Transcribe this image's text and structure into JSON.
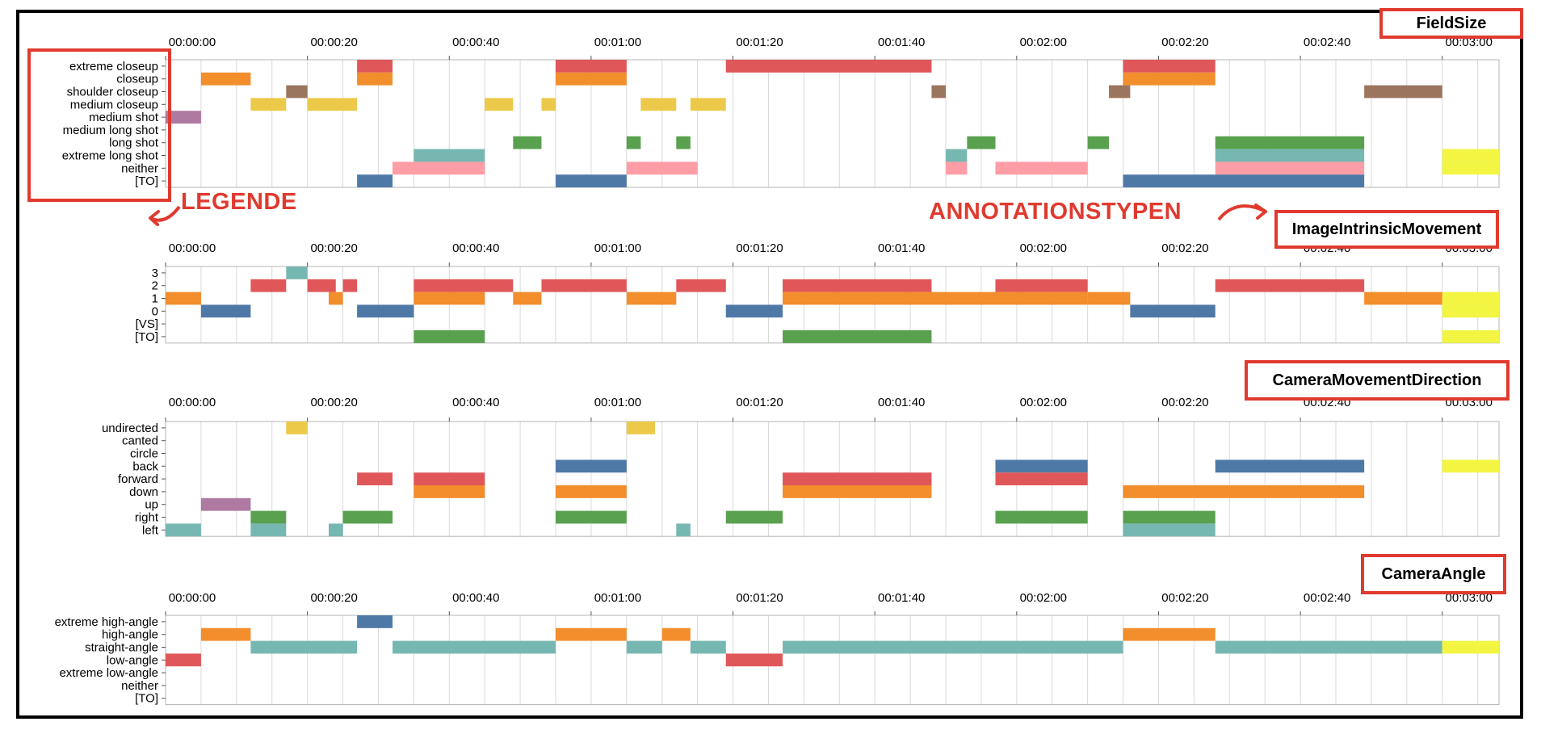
{
  "colors": {
    "red": "#e05759",
    "orange": "#f28e2c",
    "brown": "#9c755f",
    "yellow": "#edc949",
    "purple": "#af7aa1",
    "green": "#59a14f",
    "teal": "#76b7b2",
    "pink": "#ff9da7",
    "blue": "#4e79a7",
    "lime": "#f2f542",
    "highlight": "#e03a2f"
  },
  "annotations": {
    "legend_label": "LEGENDE",
    "types_label": "ANNOTATIONSTYPEN"
  },
  "chart_data": [
    {
      "type": "timeline",
      "title": "FieldSize",
      "time_ticks": [
        "00:00:00",
        "00:00:20",
        "00:00:40",
        "00:01:00",
        "00:01:20",
        "00:01:40",
        "00:02:00",
        "00:02:20",
        "00:02:40",
        "00:03:00"
      ],
      "x_range_seconds": [
        0,
        188
      ],
      "categories": [
        "extreme closeup",
        "closeup",
        "shoulder closeup",
        "medium closeup",
        "medium shot",
        "medium long shot",
        "long shot",
        "extreme long shot",
        "neither",
        "[TO]"
      ],
      "segments": [
        {
          "category": "extreme closeup",
          "start": 27,
          "end": 32,
          "color": "red"
        },
        {
          "category": "extreme closeup",
          "start": 55,
          "end": 65,
          "color": "red"
        },
        {
          "category": "extreme closeup",
          "start": 79,
          "end": 108,
          "color": "red"
        },
        {
          "category": "extreme closeup",
          "start": 135,
          "end": 148,
          "color": "red"
        },
        {
          "category": "closeup",
          "start": 5,
          "end": 12,
          "color": "orange"
        },
        {
          "category": "closeup",
          "start": 27,
          "end": 32,
          "color": "orange"
        },
        {
          "category": "closeup",
          "start": 55,
          "end": 65,
          "color": "orange"
        },
        {
          "category": "closeup",
          "start": 135,
          "end": 148,
          "color": "orange"
        },
        {
          "category": "shoulder closeup",
          "start": 17,
          "end": 20,
          "color": "brown"
        },
        {
          "category": "shoulder closeup",
          "start": 108,
          "end": 110,
          "color": "brown"
        },
        {
          "category": "shoulder closeup",
          "start": 133,
          "end": 136,
          "color": "brown"
        },
        {
          "category": "shoulder closeup",
          "start": 169,
          "end": 180,
          "color": "brown"
        },
        {
          "category": "medium closeup",
          "start": 12,
          "end": 17,
          "color": "yellow"
        },
        {
          "category": "medium closeup",
          "start": 20,
          "end": 27,
          "color": "yellow"
        },
        {
          "category": "medium closeup",
          "start": 45,
          "end": 49,
          "color": "yellow"
        },
        {
          "category": "medium closeup",
          "start": 53,
          "end": 55,
          "color": "yellow"
        },
        {
          "category": "medium closeup",
          "start": 67,
          "end": 72,
          "color": "yellow"
        },
        {
          "category": "medium closeup",
          "start": 74,
          "end": 79,
          "color": "yellow"
        },
        {
          "category": "medium shot",
          "start": 0,
          "end": 5,
          "color": "purple"
        },
        {
          "category": "long shot",
          "start": 49,
          "end": 53,
          "color": "green"
        },
        {
          "category": "long shot",
          "start": 65,
          "end": 67,
          "color": "green"
        },
        {
          "category": "long shot",
          "start": 72,
          "end": 74,
          "color": "green"
        },
        {
          "category": "long shot",
          "start": 113,
          "end": 117,
          "color": "green"
        },
        {
          "category": "long shot",
          "start": 130,
          "end": 133,
          "color": "green"
        },
        {
          "category": "long shot",
          "start": 148,
          "end": 169,
          "color": "green"
        },
        {
          "category": "extreme long shot",
          "start": 35,
          "end": 45,
          "color": "teal"
        },
        {
          "category": "extreme long shot",
          "start": 110,
          "end": 113,
          "color": "teal"
        },
        {
          "category": "extreme long shot",
          "start": 148,
          "end": 169,
          "color": "teal"
        },
        {
          "category": "extreme long shot",
          "start": 180,
          "end": 188,
          "color": "lime"
        },
        {
          "category": "neither",
          "start": 32,
          "end": 45,
          "color": "pink"
        },
        {
          "category": "neither",
          "start": 65,
          "end": 75,
          "color": "pink"
        },
        {
          "category": "neither",
          "start": 110,
          "end": 113,
          "color": "pink"
        },
        {
          "category": "neither",
          "start": 117,
          "end": 130,
          "color": "pink"
        },
        {
          "category": "neither",
          "start": 148,
          "end": 169,
          "color": "pink"
        },
        {
          "category": "neither",
          "start": 180,
          "end": 188,
          "color": "lime"
        },
        {
          "category": "[TO]",
          "start": 27,
          "end": 32,
          "color": "blue"
        },
        {
          "category": "[TO]",
          "start": 55,
          "end": 65,
          "color": "blue"
        },
        {
          "category": "[TO]",
          "start": 135,
          "end": 169,
          "color": "blue"
        }
      ]
    },
    {
      "type": "timeline",
      "title": "ImageIntrinsicMovement",
      "time_ticks": [
        "00:00:00",
        "00:00:20",
        "00:00:40",
        "00:01:00",
        "00:01:20",
        "00:01:40",
        "00:02:00",
        "00:02:20",
        "00:02:40",
        "00:03:00"
      ],
      "x_range_seconds": [
        0,
        188
      ],
      "categories": [
        "3",
        "2",
        "1",
        "0",
        "[VS]",
        "[TO]"
      ],
      "segments": [
        {
          "category": "3",
          "start": 17,
          "end": 20,
          "color": "teal"
        },
        {
          "category": "2",
          "start": 12,
          "end": 17,
          "color": "red"
        },
        {
          "category": "2",
          "start": 20,
          "end": 24,
          "color": "red"
        },
        {
          "category": "2",
          "start": 25,
          "end": 27,
          "color": "red"
        },
        {
          "category": "2",
          "start": 35,
          "end": 49,
          "color": "red"
        },
        {
          "category": "2",
          "start": 53,
          "end": 65,
          "color": "red"
        },
        {
          "category": "2",
          "start": 72,
          "end": 79,
          "color": "red"
        },
        {
          "category": "2",
          "start": 87,
          "end": 108,
          "color": "red"
        },
        {
          "category": "2",
          "start": 117,
          "end": 130,
          "color": "red"
        },
        {
          "category": "2",
          "start": 148,
          "end": 169,
          "color": "red"
        },
        {
          "category": "1",
          "start": 0,
          "end": 5,
          "color": "orange"
        },
        {
          "category": "1",
          "start": 23,
          "end": 25,
          "color": "orange"
        },
        {
          "category": "1",
          "start": 35,
          "end": 45,
          "color": "orange"
        },
        {
          "category": "1",
          "start": 49,
          "end": 53,
          "color": "orange"
        },
        {
          "category": "1",
          "start": 65,
          "end": 72,
          "color": "orange"
        },
        {
          "category": "1",
          "start": 87,
          "end": 130,
          "color": "orange"
        },
        {
          "category": "1",
          "start": 130,
          "end": 136,
          "color": "orange"
        },
        {
          "category": "1",
          "start": 169,
          "end": 180,
          "color": "orange"
        },
        {
          "category": "1",
          "start": 180,
          "end": 188,
          "color": "lime"
        },
        {
          "category": "0",
          "start": 5,
          "end": 12,
          "color": "blue"
        },
        {
          "category": "0",
          "start": 27,
          "end": 35,
          "color": "blue"
        },
        {
          "category": "0",
          "start": 79,
          "end": 87,
          "color": "blue"
        },
        {
          "category": "0",
          "start": 136,
          "end": 148,
          "color": "blue"
        },
        {
          "category": "0",
          "start": 180,
          "end": 188,
          "color": "lime"
        },
        {
          "category": "[TO]",
          "start": 35,
          "end": 45,
          "color": "green"
        },
        {
          "category": "[TO]",
          "start": 87,
          "end": 108,
          "color": "green"
        },
        {
          "category": "[TO]",
          "start": 180,
          "end": 188,
          "color": "lime"
        }
      ]
    },
    {
      "type": "timeline",
      "title": "CameraMovementDirection",
      "time_ticks": [
        "00:00:00",
        "00:00:20",
        "00:00:40",
        "00:01:00",
        "00:01:20",
        "00:01:40",
        "00:02:00",
        "00:02:20",
        "00:02:40",
        "00:03:00"
      ],
      "x_range_seconds": [
        0,
        188
      ],
      "categories": [
        "undirected",
        "canted",
        "circle",
        "back",
        "forward",
        "down",
        "up",
        "right",
        "left"
      ],
      "segments": [
        {
          "category": "undirected",
          "start": 17,
          "end": 20,
          "color": "yellow"
        },
        {
          "category": "undirected",
          "start": 65,
          "end": 69,
          "color": "yellow"
        },
        {
          "category": "back",
          "start": 55,
          "end": 65,
          "color": "blue"
        },
        {
          "category": "back",
          "start": 117,
          "end": 130,
          "color": "blue"
        },
        {
          "category": "back",
          "start": 148,
          "end": 169,
          "color": "blue"
        },
        {
          "category": "back",
          "start": 180,
          "end": 188,
          "color": "lime"
        },
        {
          "category": "forward",
          "start": 27,
          "end": 32,
          "color": "red"
        },
        {
          "category": "forward",
          "start": 35,
          "end": 45,
          "color": "red"
        },
        {
          "category": "forward",
          "start": 87,
          "end": 108,
          "color": "red"
        },
        {
          "category": "forward",
          "start": 117,
          "end": 130,
          "color": "red"
        },
        {
          "category": "down",
          "start": 35,
          "end": 45,
          "color": "orange"
        },
        {
          "category": "down",
          "start": 55,
          "end": 65,
          "color": "orange"
        },
        {
          "category": "down",
          "start": 87,
          "end": 108,
          "color": "orange"
        },
        {
          "category": "down",
          "start": 135,
          "end": 169,
          "color": "orange"
        },
        {
          "category": "up",
          "start": 5,
          "end": 12,
          "color": "purple"
        },
        {
          "category": "right",
          "start": 12,
          "end": 17,
          "color": "green"
        },
        {
          "category": "right",
          "start": 25,
          "end": 32,
          "color": "green"
        },
        {
          "category": "right",
          "start": 55,
          "end": 65,
          "color": "green"
        },
        {
          "category": "right",
          "start": 79,
          "end": 87,
          "color": "green"
        },
        {
          "category": "right",
          "start": 117,
          "end": 130,
          "color": "green"
        },
        {
          "category": "right",
          "start": 135,
          "end": 148,
          "color": "green"
        },
        {
          "category": "left",
          "start": 0,
          "end": 5,
          "color": "teal"
        },
        {
          "category": "left",
          "start": 12,
          "end": 17,
          "color": "teal"
        },
        {
          "category": "left",
          "start": 23,
          "end": 25,
          "color": "teal"
        },
        {
          "category": "left",
          "start": 72,
          "end": 74,
          "color": "teal"
        },
        {
          "category": "left",
          "start": 135,
          "end": 148,
          "color": "teal"
        }
      ]
    },
    {
      "type": "timeline",
      "title": "CameraAngle",
      "time_ticks": [
        "00:00:00",
        "00:00:20",
        "00:00:40",
        "00:01:00",
        "00:01:20",
        "00:01:40",
        "00:02:00",
        "00:02:20",
        "00:02:40",
        "00:03:00"
      ],
      "x_range_seconds": [
        0,
        188
      ],
      "categories": [
        "extreme high-angle",
        "high-angle",
        "straight-angle",
        "low-angle",
        "extreme low-angle",
        "neither",
        "[TO]"
      ],
      "segments": [
        {
          "category": "extreme high-angle",
          "start": 27,
          "end": 32,
          "color": "blue"
        },
        {
          "category": "high-angle",
          "start": 5,
          "end": 12,
          "color": "orange"
        },
        {
          "category": "high-angle",
          "start": 55,
          "end": 65,
          "color": "orange"
        },
        {
          "category": "high-angle",
          "start": 70,
          "end": 74,
          "color": "orange"
        },
        {
          "category": "high-angle",
          "start": 135,
          "end": 148,
          "color": "orange"
        },
        {
          "category": "straight-angle",
          "start": 12,
          "end": 27,
          "color": "teal"
        },
        {
          "category": "straight-angle",
          "start": 32,
          "end": 55,
          "color": "teal"
        },
        {
          "category": "straight-angle",
          "start": 65,
          "end": 70,
          "color": "teal"
        },
        {
          "category": "straight-angle",
          "start": 74,
          "end": 79,
          "color": "teal"
        },
        {
          "category": "straight-angle",
          "start": 87,
          "end": 135,
          "color": "teal"
        },
        {
          "category": "straight-angle",
          "start": 148,
          "end": 180,
          "color": "teal"
        },
        {
          "category": "straight-angle",
          "start": 180,
          "end": 188,
          "color": "lime"
        },
        {
          "category": "low-angle",
          "start": 0,
          "end": 5,
          "color": "red"
        },
        {
          "category": "low-angle",
          "start": 79,
          "end": 87,
          "color": "red"
        }
      ]
    }
  ]
}
